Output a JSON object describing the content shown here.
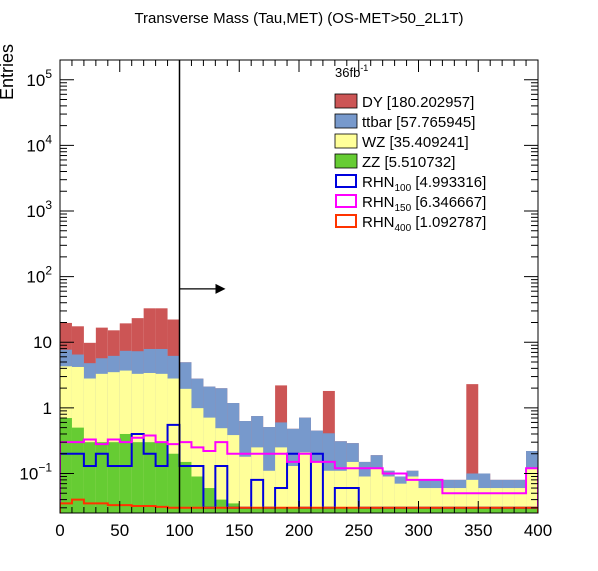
{
  "chart_data": {
    "type": "histogram-stacked",
    "title": "Transverse Mass (Tau,MET) (OS-MET>50_2L1T)",
    "ylabel": "Entries",
    "xlabel": "",
    "luminosity_label": "36fb",
    "luminosity_sup": "-1",
    "xlim": [
      0,
      400
    ],
    "ylim": [
      0.025,
      200000
    ],
    "yscale": "log",
    "bin_width": 10,
    "bin_edges_start": 0,
    "x_ticks": [
      "0",
      "50",
      "100",
      "150",
      "200",
      "250",
      "300",
      "350",
      "400"
    ],
    "y_ticks": [
      {
        "mant": "10",
        "exp": "−1"
      },
      {
        "mant": "1",
        "exp": ""
      },
      {
        "mant": "10",
        "exp": ""
      },
      {
        "mant": "10",
        "exp": "2"
      },
      {
        "mant": "10",
        "exp": "3"
      },
      {
        "mant": "10",
        "exp": "4"
      },
      {
        "mant": "10",
        "exp": "5"
      }
    ],
    "cut_line_x": 100,
    "cut_arrow_y": 65,
    "stack": [
      {
        "name": "ZZ",
        "label": "ZZ [5.510732]",
        "color": "#66cc33",
        "values": [
          0.7,
          0.5,
          0.3,
          0.3,
          0.3,
          0.4,
          0.3,
          0.3,
          0.3,
          0.2,
          0.15,
          0.09,
          0.06,
          0.04,
          0.035,
          0.03,
          0.03,
          0.03,
          0.03,
          0.03,
          0.03,
          0.03,
          0.03,
          0.03,
          0.03,
          0.03,
          0.03,
          0.03,
          0.03,
          0.03,
          0.03,
          0.03,
          0.03,
          0.03,
          0.03,
          0.03,
          0.03,
          0.03,
          0.03,
          0.03
        ]
      },
      {
        "name": "WZ",
        "label": "WZ [35.409241]",
        "color": "#ffff99",
        "values": [
          3.6,
          3.7,
          2.5,
          3.0,
          3.2,
          3.3,
          3.0,
          3.1,
          3.0,
          2.6,
          1.8,
          0.9,
          0.65,
          0.45,
          0.35,
          0.15,
          0.22,
          0.08,
          0.22,
          0.1,
          0.18,
          0.12,
          0.08,
          0.08,
          0.12,
          0.06,
          0.09,
          0.06,
          0.04,
          0.06,
          0.03,
          0.03,
          0.03,
          0.03,
          0.05,
          0.03,
          0.03,
          0.03,
          0.03,
          0.09
        ]
      },
      {
        "name": "ttbar",
        "label": "ttbar [57.765945]",
        "color": "#7799cc",
        "values": [
          3.4,
          2.3,
          2.0,
          2.4,
          2.7,
          3.7,
          4.0,
          4.5,
          4.6,
          3.4,
          3.0,
          1.8,
          1.4,
          1.5,
          0.8,
          0.45,
          0.5,
          0.4,
          0.35,
          0.35,
          0.5,
          0.3,
          0.3,
          0.2,
          0.14,
          0.06,
          0.07,
          0.02,
          0.02,
          0.02,
          0.02,
          0.02,
          0.02,
          0.02,
          0.02,
          0.04,
          0.02,
          0.02,
          0.02,
          0.1
        ]
      },
      {
        "name": "DY",
        "label": "DY [180.202957]",
        "color": "#cc5555",
        "values": [
          12,
          11,
          5,
          11,
          9,
          12,
          16,
          25,
          25,
          16,
          0,
          0,
          0,
          0,
          0,
          0,
          0,
          0,
          1.6,
          0,
          0,
          0,
          1.4,
          0,
          0,
          0,
          0,
          0,
          0,
          0,
          0,
          0,
          0,
          0,
          2.2,
          0,
          0,
          0,
          0,
          0
        ]
      }
    ],
    "signals": [
      {
        "name": "RHN100",
        "sub": "100",
        "label_pre": "RHN",
        "label_post": " [4.993316]",
        "color": "#0000dd",
        "values": [
          0.2,
          0.2,
          0.13,
          0.2,
          0.13,
          0.13,
          0.4,
          0.2,
          0.13,
          0.55,
          0.13,
          0.13,
          0.03,
          0.13,
          0.03,
          0.03,
          0.08,
          0.03,
          0.06,
          0.2,
          0.03,
          0.2,
          0.03,
          0.06,
          0.06,
          0.03,
          0.03,
          0.03,
          0.03,
          0.03,
          0.03,
          0.03,
          0.03,
          0.03,
          0.03,
          0.03,
          0.03,
          0.03,
          0.03,
          0.03
        ]
      },
      {
        "name": "RHN150",
        "sub": "150",
        "label_pre": "RHN",
        "label_post": " [6.346667]",
        "color": "#ff00ff",
        "values": [
          0.3,
          0.3,
          0.33,
          0.28,
          0.33,
          0.3,
          0.35,
          0.38,
          0.3,
          0.28,
          0.3,
          0.25,
          0.22,
          0.3,
          0.2,
          0.2,
          0.2,
          0.2,
          0.2,
          0.15,
          0.2,
          0.15,
          0.15,
          0.12,
          0.12,
          0.12,
          0.12,
          0.1,
          0.1,
          0.08,
          0.08,
          0.08,
          0.05,
          0.05,
          0.05,
          0.05,
          0.05,
          0.05,
          0.05,
          0.12
        ]
      },
      {
        "name": "RHN400",
        "sub": "400",
        "label_pre": "RHN",
        "label_post": " [1.092787]",
        "color": "#ff3300",
        "values": [
          0.035,
          0.04,
          0.035,
          0.035,
          0.033,
          0.033,
          0.032,
          0.032,
          0.031,
          0.03,
          0.03,
          0.03,
          0.03,
          0.03,
          0.03,
          0.03,
          0.03,
          0.03,
          0.03,
          0.03,
          0.03,
          0.03,
          0.03,
          0.03,
          0.03,
          0.03,
          0.03,
          0.03,
          0.03,
          0.03,
          0.03,
          0.03,
          0.03,
          0.03,
          0.03,
          0.03,
          0.03,
          0.03,
          0.03,
          0.03
        ]
      }
    ],
    "legend_order": [
      "DY",
      "ttbar",
      "WZ",
      "ZZ",
      "RHN100",
      "RHN150",
      "RHN400"
    ]
  }
}
